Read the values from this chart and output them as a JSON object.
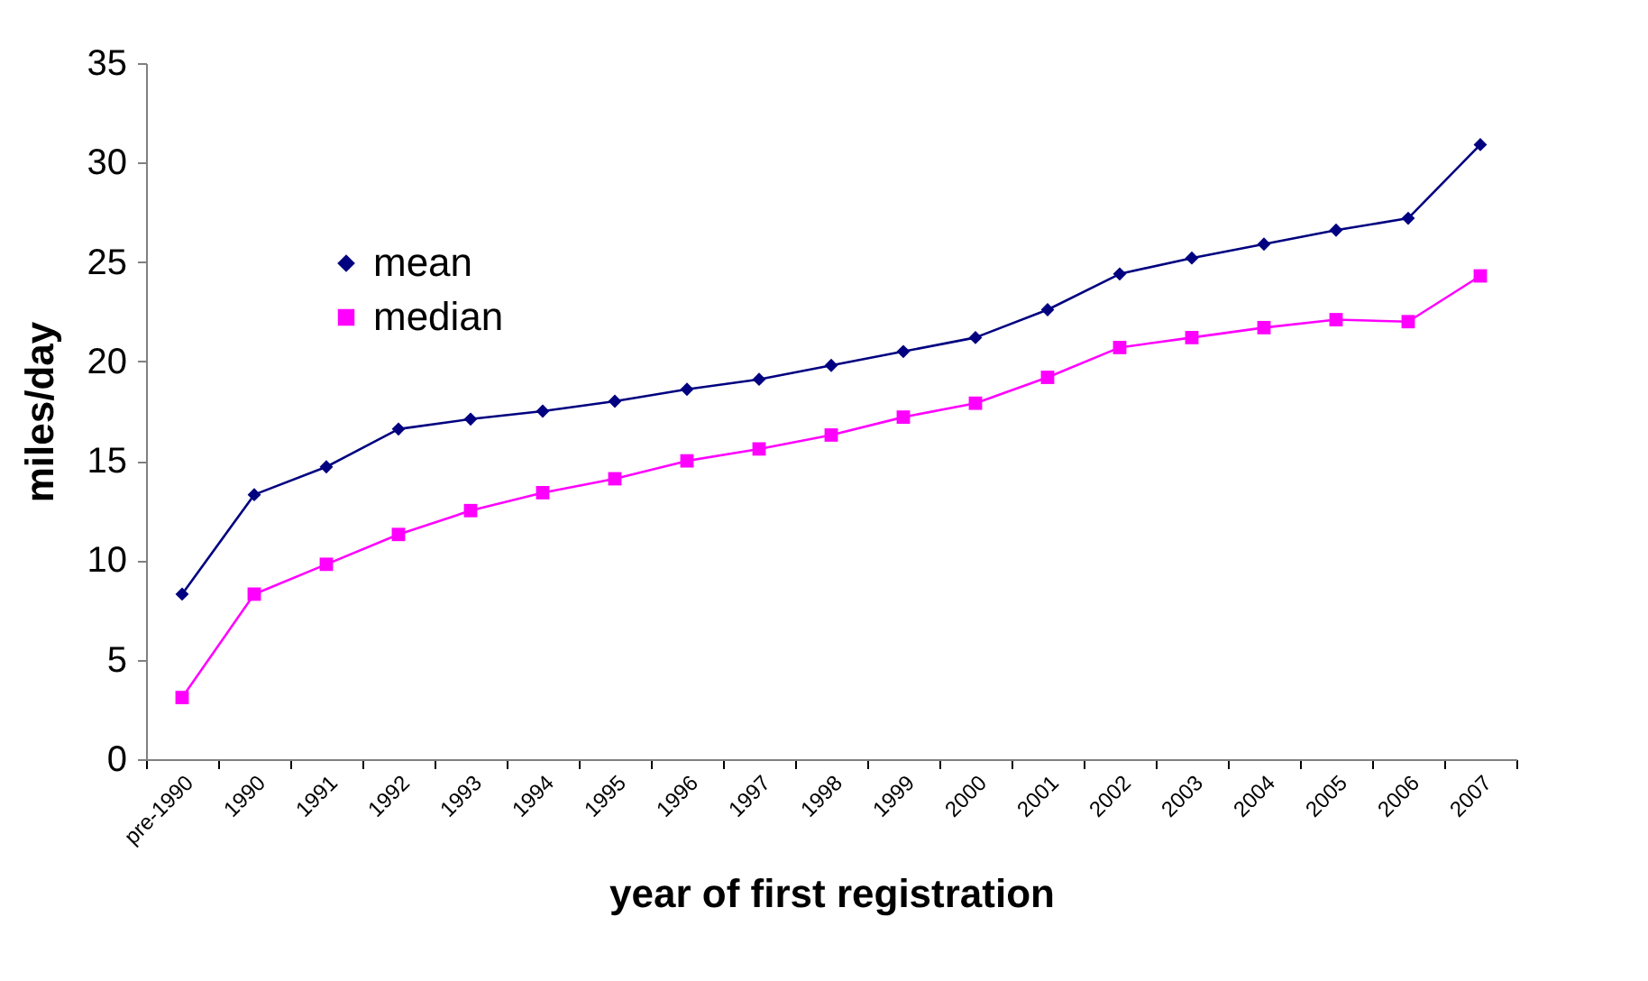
{
  "chart_data": {
    "type": "line",
    "xlabel": "year of first registration",
    "ylabel": "miles/day",
    "categories": [
      "pre-1990",
      "1990",
      "1991",
      "1992",
      "1993",
      "1994",
      "1995",
      "1996",
      "1997",
      "1998",
      "1999",
      "2000",
      "2001",
      "2002",
      "2003",
      "2004",
      "2005",
      "2006",
      "2007"
    ],
    "series": [
      {
        "name": "mean",
        "color": "#000080",
        "marker": "diamond",
        "values": [
          8.3,
          13.3,
          14.7,
          16.6,
          17.1,
          17.5,
          18.0,
          18.6,
          19.1,
          19.8,
          20.5,
          21.2,
          22.6,
          24.4,
          25.2,
          25.9,
          26.6,
          27.2,
          30.9
        ]
      },
      {
        "name": "median",
        "color": "#ff00ff",
        "marker": "square",
        "values": [
          3.1,
          8.3,
          9.8,
          11.3,
          12.5,
          13.4,
          14.1,
          15.0,
          15.6,
          16.3,
          17.2,
          17.9,
          19.2,
          20.7,
          21.2,
          21.7,
          22.1,
          22.0,
          24.3
        ]
      }
    ],
    "ylim": [
      0,
      35
    ],
    "yticks": [
      0,
      5,
      10,
      15,
      20,
      25,
      30,
      35
    ],
    "grid": false,
    "legend": "top left",
    "line_style": "solid"
  }
}
